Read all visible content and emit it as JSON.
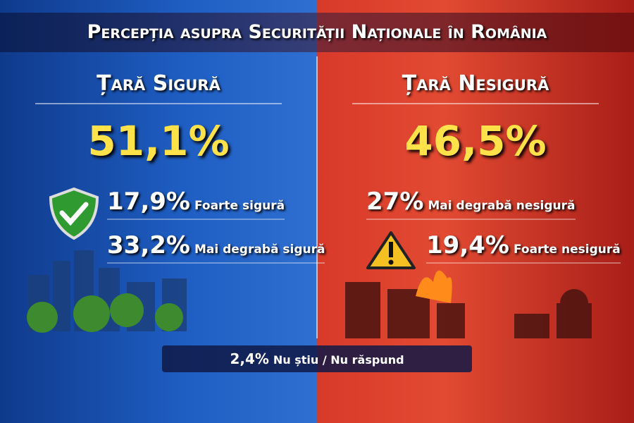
{
  "title": "Percepția asupra Securității Naționale în România",
  "left": {
    "heading": "Țară Sigură",
    "total": "51,1%",
    "rows": [
      {
        "value": "17,9%",
        "label": "Foarte sigură"
      },
      {
        "value": "33,2%",
        "label": "Mai degrabă sigură"
      }
    ]
  },
  "right": {
    "heading": "Țară Nesigură",
    "total": "46,5%",
    "rows": [
      {
        "value": "27%",
        "label": "Mai degrabă nesigură"
      },
      {
        "value": "19,4%",
        "label": "Foarte nesigură"
      }
    ]
  },
  "footer": {
    "value": "2,4%",
    "label": "Nu știu / Nu răspund"
  }
}
